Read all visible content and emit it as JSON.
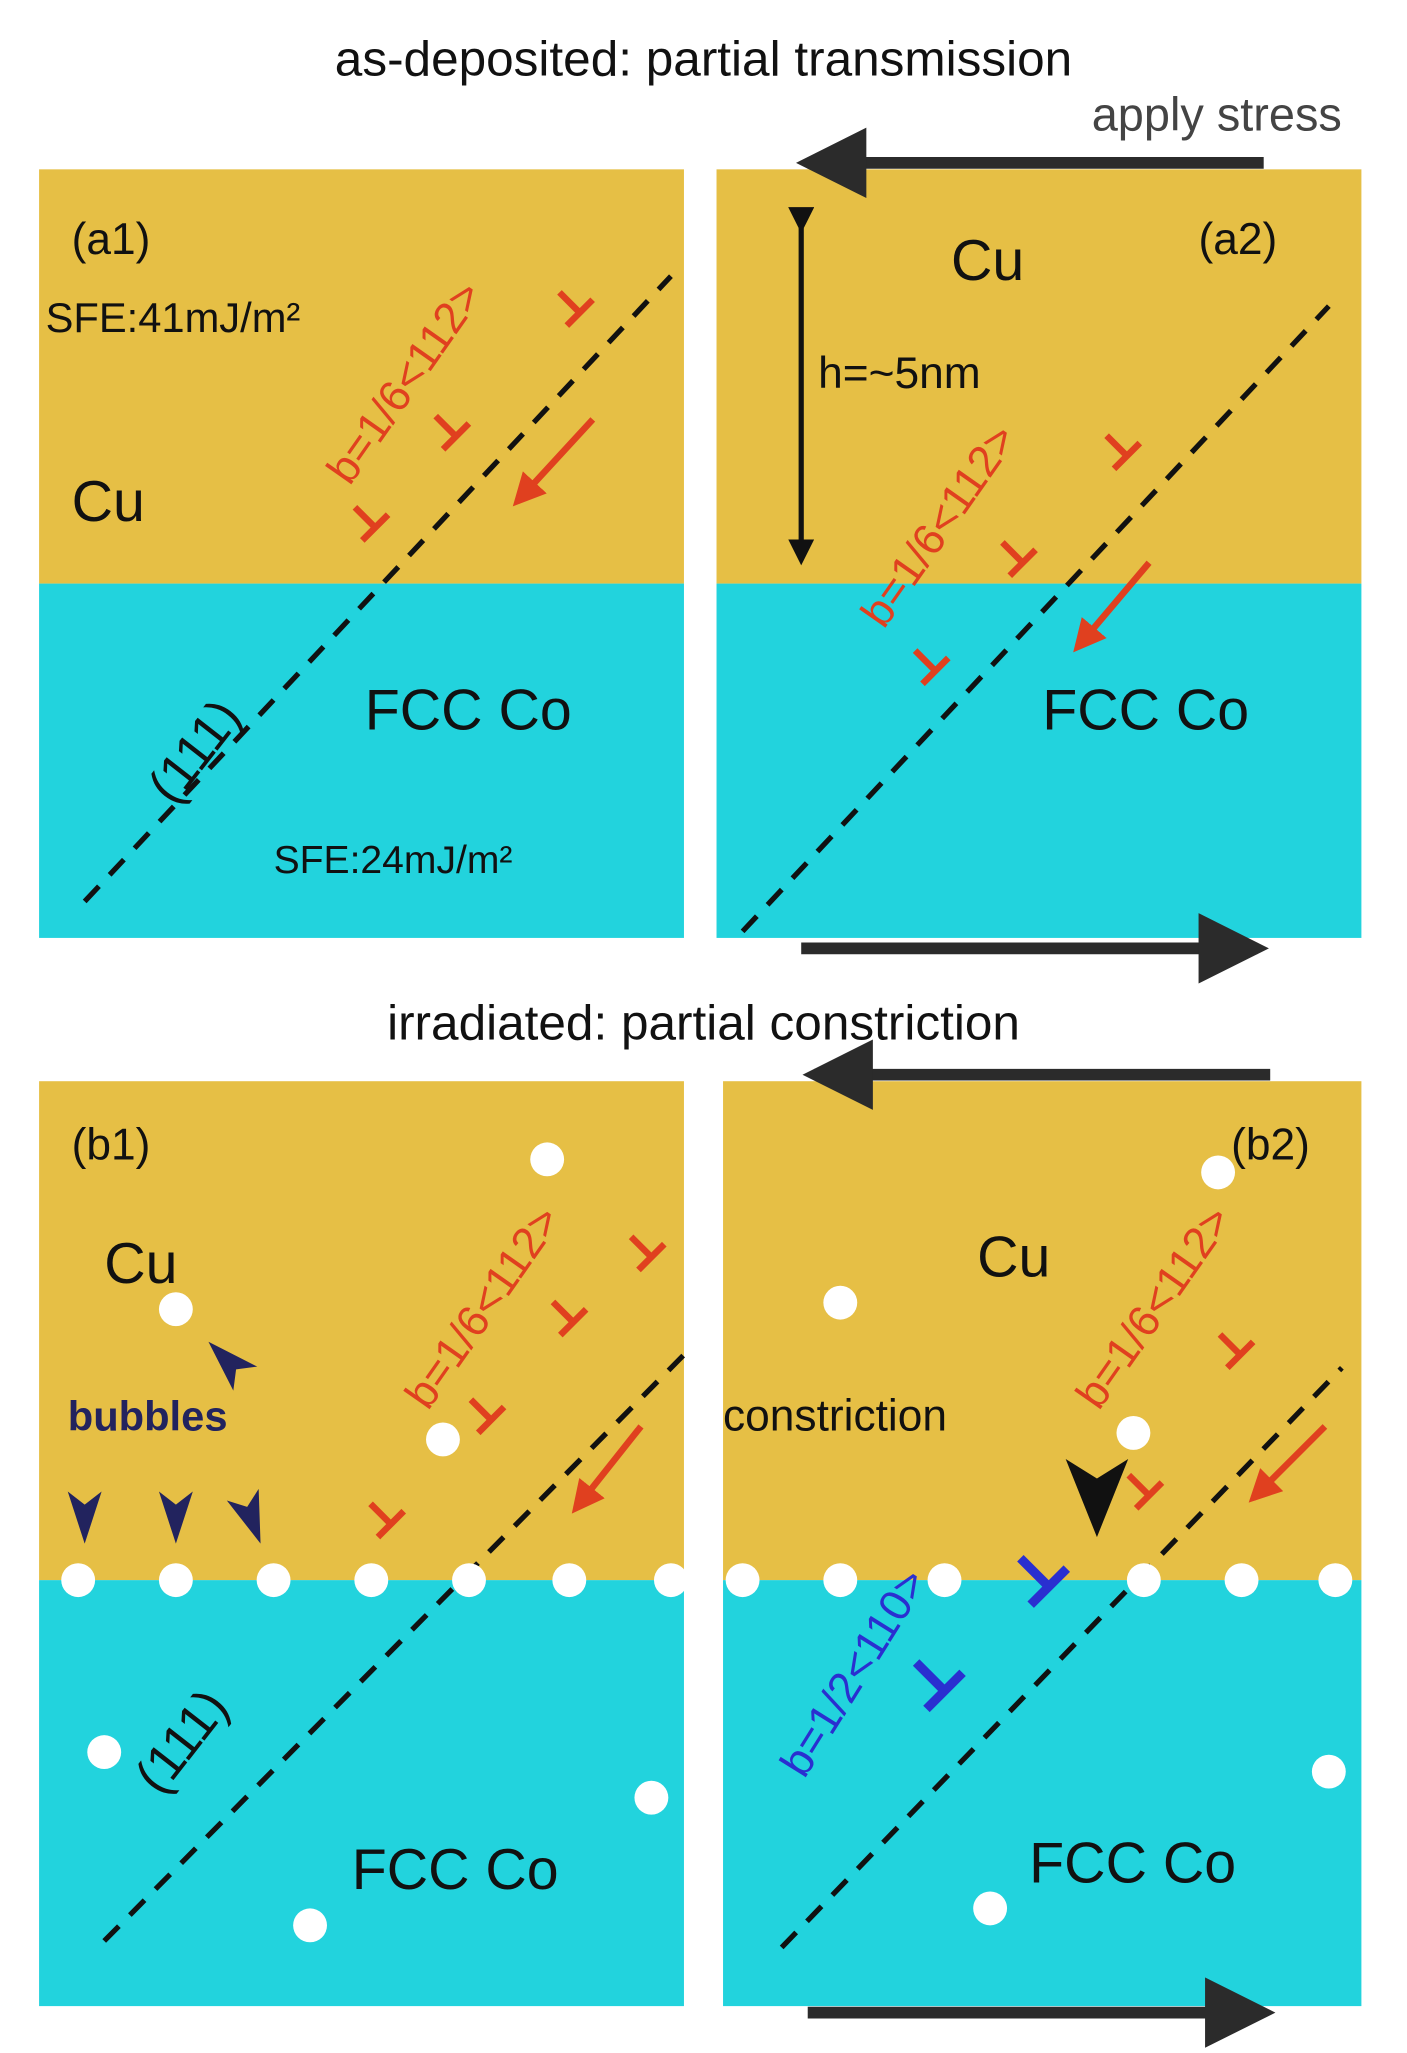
{
  "title_a": "as-deposited: partial transmission",
  "apply_stress": "apply stress",
  "a1": {
    "label": "(a1)",
    "sfe_cu": "SFE:41mJ/m²",
    "cu": "Cu",
    "burgers": "b=1/6<112>",
    "plane": "(111)",
    "co": "FCC Co",
    "sfe_co": "SFE:24mJ/m²"
  },
  "a2": {
    "label": "(a2)",
    "cu": "Cu",
    "height": "h=~5nm",
    "burgers": "b=1/6<112>",
    "co": "FCC Co"
  },
  "title_b": "irradiated: partial constriction",
  "b1": {
    "label": "(b1)",
    "cu": "Cu",
    "bubbles": "bubbles",
    "burgers": "b=1/6<112>",
    "plane": "(111)",
    "co": "FCC Co"
  },
  "b2": {
    "label": "(b2)",
    "cu": "Cu",
    "constriction": "constriction",
    "burgers_partial": "b=1/6<112>",
    "burgers_full": "b=1/2<110>",
    "co": "FCC Co"
  }
}
